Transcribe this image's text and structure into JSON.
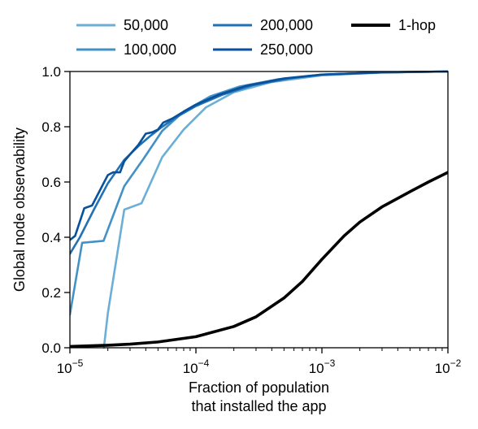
{
  "chart_data": {
    "type": "line",
    "xlabel_lines": [
      "Fraction of population",
      "that installed the app"
    ],
    "ylabel": "Global node observability",
    "xscale": "log",
    "xlim": [
      1e-05,
      0.01
    ],
    "ylim": [
      0,
      1
    ],
    "x_ticks": [
      {
        "value": 1e-05,
        "base": "10",
        "exp": "−5"
      },
      {
        "value": 0.0001,
        "base": "10",
        "exp": "−4"
      },
      {
        "value": 0.001,
        "base": "10",
        "exp": "−3"
      },
      {
        "value": 0.01,
        "base": "10",
        "exp": "−2"
      }
    ],
    "y_ticks": [
      {
        "value": 0.0,
        "label": "0.0"
      },
      {
        "value": 0.2,
        "label": "0.2"
      },
      {
        "value": 0.4,
        "label": "0.4"
      },
      {
        "value": 0.6,
        "label": "0.6"
      },
      {
        "value": 0.8,
        "label": "0.8"
      },
      {
        "value": 1.0,
        "label": "1.0"
      }
    ],
    "grid": false,
    "legend_position": "top",
    "series": [
      {
        "name": "50,000",
        "color": "#6baed6",
        "points": [
          [
            1.86e-05,
            0.0
          ],
          [
            2e-05,
            0.125
          ],
          [
            2.7e-05,
            0.5
          ],
          [
            3.7e-05,
            0.523
          ],
          [
            5.4e-05,
            0.69
          ],
          [
            8e-05,
            0.79
          ],
          [
            0.00012,
            0.87
          ],
          [
            0.0002,
            0.925
          ],
          [
            0.0004,
            0.962
          ],
          [
            0.001,
            0.986
          ],
          [
            0.003,
            0.996
          ],
          [
            0.01,
            1.0
          ]
        ]
      },
      {
        "name": "100,000",
        "color": "#4292c6",
        "points": [
          [
            1e-05,
            0.12
          ],
          [
            1.25e-05,
            0.38
          ],
          [
            1.85e-05,
            0.387
          ],
          [
            2.7e-05,
            0.585
          ],
          [
            3.85e-05,
            0.685
          ],
          [
            5.4e-05,
            0.785
          ],
          [
            8e-05,
            0.855
          ],
          [
            0.00013,
            0.91
          ],
          [
            0.00022,
            0.945
          ],
          [
            0.00045,
            0.972
          ],
          [
            0.001,
            0.988
          ],
          [
            0.003,
            0.997
          ],
          [
            0.01,
            1.0
          ]
        ]
      },
      {
        "name": "200,000",
        "color": "#2171b5",
        "points": [
          [
            1e-05,
            0.34
          ],
          [
            1.2e-05,
            0.4
          ],
          [
            1.55e-05,
            0.5
          ],
          [
            2e-05,
            0.595
          ],
          [
            2.7e-05,
            0.68
          ],
          [
            3.5e-05,
            0.73
          ],
          [
            4.3e-05,
            0.765
          ],
          [
            5.4e-05,
            0.8
          ],
          [
            7e-05,
            0.835
          ],
          [
            0.0001,
            0.875
          ],
          [
            0.00016,
            0.915
          ],
          [
            0.00028,
            0.95
          ],
          [
            0.00055,
            0.975
          ],
          [
            0.001,
            0.989
          ],
          [
            0.003,
            0.997
          ],
          [
            0.01,
            1.0
          ]
        ]
      },
      {
        "name": "250,000",
        "color": "#08519c",
        "points": [
          [
            1e-05,
            0.39
          ],
          [
            1.1e-05,
            0.405
          ],
          [
            1.3e-05,
            0.505
          ],
          [
            1.5e-05,
            0.515
          ],
          [
            1.8e-05,
            0.585
          ],
          [
            2e-05,
            0.625
          ],
          [
            2.2e-05,
            0.635
          ],
          [
            2.5e-05,
            0.635
          ],
          [
            2.7e-05,
            0.675
          ],
          [
            3e-05,
            0.7
          ],
          [
            3.5e-05,
            0.735
          ],
          [
            4e-05,
            0.775
          ],
          [
            4.5e-05,
            0.78
          ],
          [
            5e-05,
            0.79
          ],
          [
            5.5e-05,
            0.815
          ],
          [
            6.5e-05,
            0.83
          ],
          [
            8e-05,
            0.855
          ],
          [
            0.0001,
            0.88
          ],
          [
            0.00015,
            0.915
          ],
          [
            0.00025,
            0.948
          ],
          [
            0.0005,
            0.975
          ],
          [
            0.001,
            0.989
          ],
          [
            0.003,
            0.997
          ],
          [
            0.01,
            1.0
          ]
        ]
      },
      {
        "name": "1-hop",
        "color": "#000000",
        "points": [
          [
            1e-05,
            0.0045
          ],
          [
            2e-05,
            0.009
          ],
          [
            3e-05,
            0.013
          ],
          [
            5e-05,
            0.021
          ],
          [
            0.0001,
            0.04
          ],
          [
            0.0002,
            0.077
          ],
          [
            0.0003,
            0.112
          ],
          [
            0.0005,
            0.18
          ],
          [
            0.0007,
            0.24
          ],
          [
            0.001,
            0.32
          ],
          [
            0.0015,
            0.405
          ],
          [
            0.002,
            0.455
          ],
          [
            0.003,
            0.51
          ],
          [
            0.005,
            0.565
          ],
          [
            0.007,
            0.6
          ],
          [
            0.01,
            0.635
          ]
        ]
      }
    ]
  }
}
